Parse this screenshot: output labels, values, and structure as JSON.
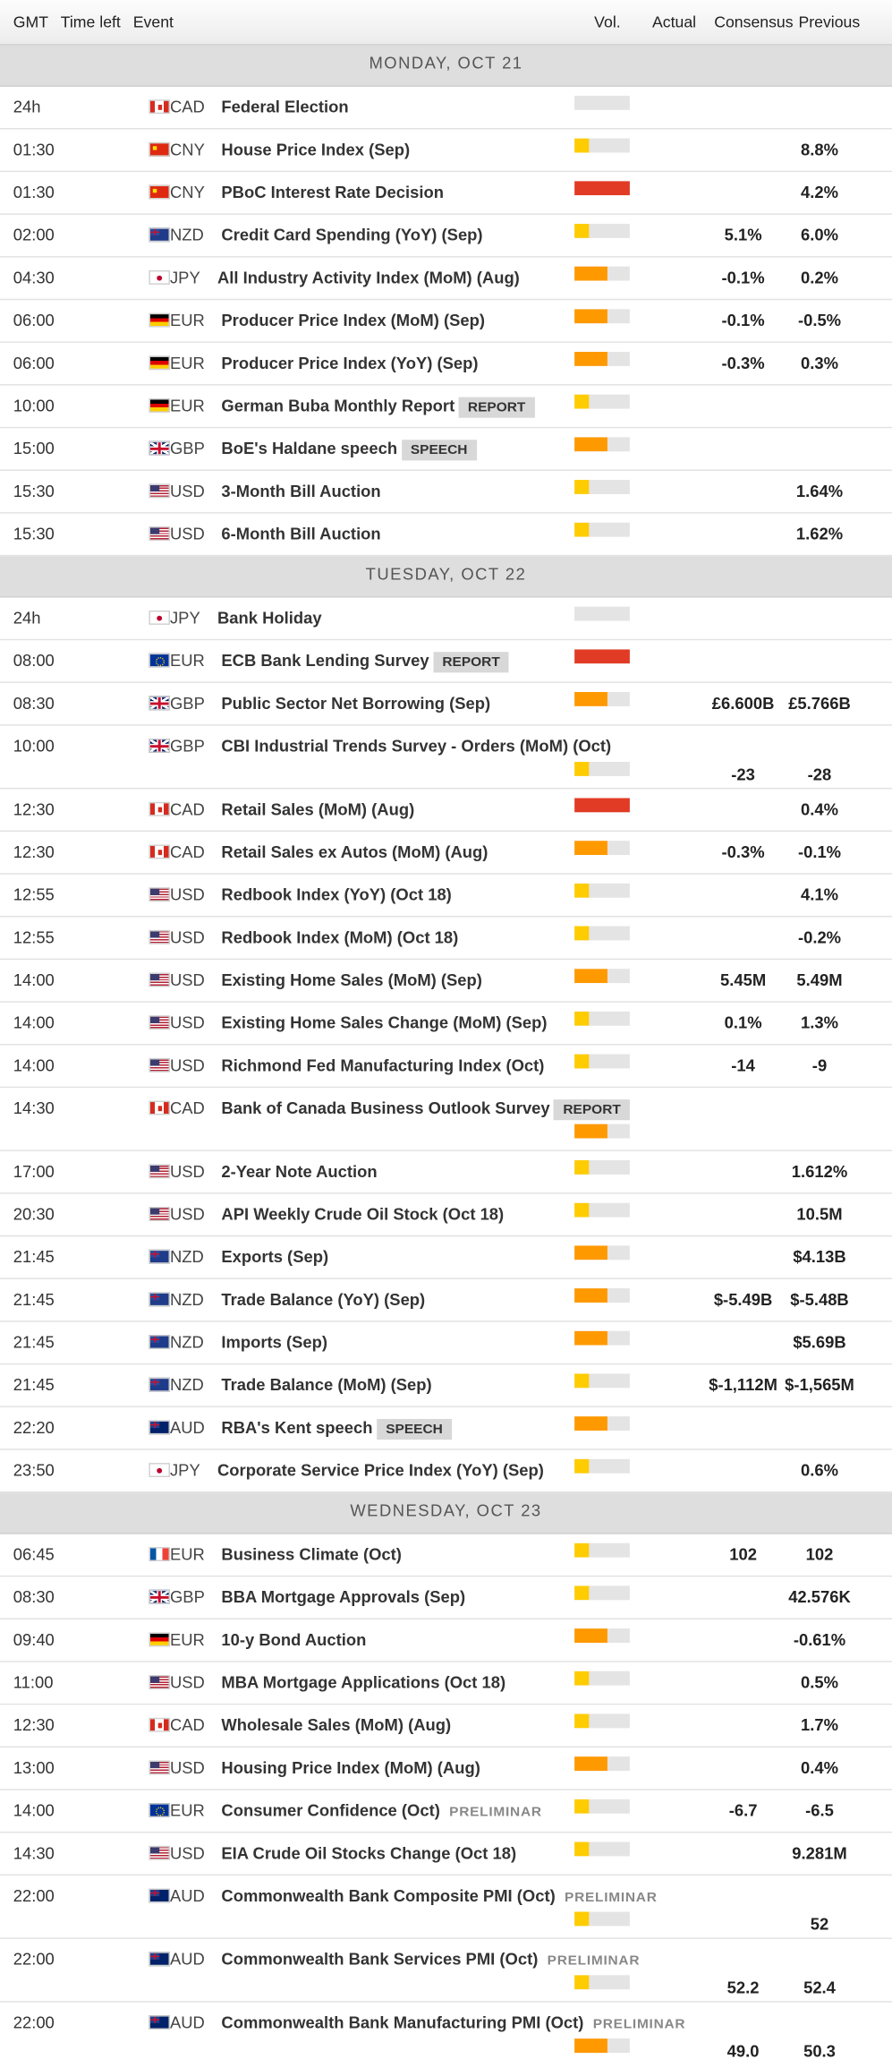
{
  "header": {
    "gmt": "GMT",
    "time_left": "Time left",
    "event": "Event",
    "vol": "Vol.",
    "actual": "Actual",
    "consensus": "Consensus",
    "previous": "Previous"
  },
  "colors": {
    "none": "#e4e4e4",
    "low": "#ffcc00",
    "medium": "#ff9900",
    "high": "#e23b25"
  },
  "days": [
    {
      "label": "MONDAY, OCT 21",
      "events": [
        {
          "time": "24h",
          "flag": "ca",
          "currency": "CAD",
          "name": "Federal Election",
          "vol": 0
        },
        {
          "time": "01:30",
          "flag": "cn",
          "currency": "CNY",
          "name": "House Price Index (Sep)",
          "vol": 1,
          "previous": "8.8%"
        },
        {
          "time": "01:30",
          "flag": "cn",
          "currency": "CNY",
          "name": "PBoC Interest Rate Decision",
          "vol": 3,
          "previous": "4.2%"
        },
        {
          "time": "02:00",
          "flag": "nz",
          "currency": "NZD",
          "name": "Credit Card Spending (YoY) (Sep)",
          "vol": 1,
          "consensus": "5.1%",
          "previous": "6.0%"
        },
        {
          "time": "04:30",
          "flag": "jp",
          "currency": "JPY",
          "name": "All Industry Activity Index (MoM) (Aug)",
          "vol": 2,
          "consensus": "-0.1%",
          "previous": "0.2%"
        },
        {
          "time": "06:00",
          "flag": "de",
          "currency": "EUR",
          "name": "Producer Price Index (MoM) (Sep)",
          "vol": 2,
          "consensus": "-0.1%",
          "previous": "-0.5%"
        },
        {
          "time": "06:00",
          "flag": "de",
          "currency": "EUR",
          "name": "Producer Price Index (YoY) (Sep)",
          "vol": 2,
          "consensus": "-0.3%",
          "previous": "0.3%"
        },
        {
          "time": "10:00",
          "flag": "de",
          "currency": "EUR",
          "name": "German Buba Monthly Report",
          "badge": "REPORT",
          "vol": 1
        },
        {
          "time": "15:00",
          "flag": "gb",
          "currency": "GBP",
          "name": "BoE's Haldane speech",
          "badge": "SPEECH",
          "vol": 2
        },
        {
          "time": "15:30",
          "flag": "us",
          "currency": "USD",
          "name": "3-Month Bill Auction",
          "vol": 1,
          "previous": "1.64%"
        },
        {
          "time": "15:30",
          "flag": "us",
          "currency": "USD",
          "name": "6-Month Bill Auction",
          "vol": 1,
          "previous": "1.62%"
        }
      ]
    },
    {
      "label": "TUESDAY, OCT 22",
      "events": [
        {
          "time": "24h",
          "flag": "jp",
          "currency": "JPY",
          "name": "Bank Holiday",
          "vol": 0
        },
        {
          "time": "08:00",
          "flag": "eu",
          "currency": "EUR",
          "name": "ECB Bank Lending Survey",
          "badge": "REPORT",
          "vol": 3
        },
        {
          "time": "08:30",
          "flag": "gb",
          "currency": "GBP",
          "name": "Public Sector Net Borrowing (Sep)",
          "vol": 2,
          "consensus": "£6.600B",
          "previous": "£5.766B"
        },
        {
          "time": "10:00",
          "flag": "gb",
          "currency": "GBP",
          "name": "CBI Industrial Trends Survey - Orders (MoM) (Oct)",
          "vol": 1,
          "consensus": "-23",
          "previous": "-28",
          "tall": true
        },
        {
          "time": "12:30",
          "flag": "ca",
          "currency": "CAD",
          "name": "Retail Sales (MoM) (Aug)",
          "vol": 3,
          "previous": "0.4%"
        },
        {
          "time": "12:30",
          "flag": "ca",
          "currency": "CAD",
          "name": "Retail Sales ex Autos (MoM) (Aug)",
          "vol": 2,
          "consensus": "-0.3%",
          "previous": "-0.1%"
        },
        {
          "time": "12:55",
          "flag": "us",
          "currency": "USD",
          "name": "Redbook Index (YoY) (Oct 18)",
          "vol": 1,
          "previous": "4.1%"
        },
        {
          "time": "12:55",
          "flag": "us",
          "currency": "USD",
          "name": "Redbook Index (MoM) (Oct 18)",
          "vol": 1,
          "previous": "-0.2%"
        },
        {
          "time": "14:00",
          "flag": "us",
          "currency": "USD",
          "name": "Existing Home Sales (MoM) (Sep)",
          "vol": 2,
          "consensus": "5.45M",
          "previous": "5.49M"
        },
        {
          "time": "14:00",
          "flag": "us",
          "currency": "USD",
          "name": "Existing Home Sales Change (MoM) (Sep)",
          "vol": 1,
          "consensus": "0.1%",
          "previous": "1.3%"
        },
        {
          "time": "14:00",
          "flag": "us",
          "currency": "USD",
          "name": "Richmond Fed Manufacturing Index (Oct)",
          "vol": 1,
          "consensus": "-14",
          "previous": "-9"
        },
        {
          "time": "14:30",
          "flag": "ca",
          "currency": "CAD",
          "name": "Bank of Canada Business Outlook Survey",
          "badge": "REPORT",
          "vol": 2,
          "tall": true
        },
        {
          "time": "17:00",
          "flag": "us",
          "currency": "USD",
          "name": "2-Year Note Auction",
          "vol": 1,
          "previous": "1.612%"
        },
        {
          "time": "20:30",
          "flag": "us",
          "currency": "USD",
          "name": "API Weekly Crude Oil Stock (Oct 18)",
          "vol": 1,
          "previous": "10.5M"
        },
        {
          "time": "21:45",
          "flag": "nz",
          "currency": "NZD",
          "name": "Exports (Sep)",
          "vol": 2,
          "previous": "$4.13B"
        },
        {
          "time": "21:45",
          "flag": "nz",
          "currency": "NZD",
          "name": "Trade Balance (YoY) (Sep)",
          "vol": 2,
          "consensus": "$-5.49B",
          "previous": "$-5.48B"
        },
        {
          "time": "21:45",
          "flag": "nz",
          "currency": "NZD",
          "name": "Imports (Sep)",
          "vol": 2,
          "previous": "$5.69B"
        },
        {
          "time": "21:45",
          "flag": "nz",
          "currency": "NZD",
          "name": "Trade Balance (MoM) (Sep)",
          "vol": 1,
          "consensus": "$-1,112M",
          "previous": "$-1,565M"
        },
        {
          "time": "22:20",
          "flag": "au",
          "currency": "AUD",
          "name": "RBA's Kent speech",
          "badge": "SPEECH",
          "vol": 2
        },
        {
          "time": "23:50",
          "flag": "jp",
          "currency": "JPY",
          "name": "Corporate Service Price Index (YoY) (Sep)",
          "vol": 1,
          "previous": "0.6%"
        }
      ]
    },
    {
      "label": "WEDNESDAY, OCT 23",
      "events": [
        {
          "time": "06:45",
          "flag": "fr",
          "currency": "EUR",
          "name": "Business Climate (Oct)",
          "vol": 1,
          "consensus": "102",
          "previous": "102"
        },
        {
          "time": "08:30",
          "flag": "gb",
          "currency": "GBP",
          "name": "BBA Mortgage Approvals (Sep)",
          "vol": 1,
          "previous": "42.576K"
        },
        {
          "time": "09:40",
          "flag": "de",
          "currency": "EUR",
          "name": "10-y Bond Auction",
          "vol": 2,
          "previous": "-0.61%"
        },
        {
          "time": "11:00",
          "flag": "us",
          "currency": "USD",
          "name": "MBA Mortgage Applications (Oct 18)",
          "vol": 1,
          "previous": "0.5%"
        },
        {
          "time": "12:30",
          "flag": "ca",
          "currency": "CAD",
          "name": "Wholesale Sales (MoM) (Aug)",
          "vol": 1,
          "previous": "1.7%"
        },
        {
          "time": "13:00",
          "flag": "us",
          "currency": "USD",
          "name": "Housing Price Index (MoM) (Aug)",
          "vol": 2,
          "previous": "0.4%"
        },
        {
          "time": "14:00",
          "flag": "eu",
          "currency": "EUR",
          "name": "Consumer Confidence (Oct)",
          "prelim": "PRELIMINAR",
          "vol": 1,
          "consensus": "-6.7",
          "previous": "-6.5"
        },
        {
          "time": "14:30",
          "flag": "us",
          "currency": "USD",
          "name": "EIA Crude Oil Stocks Change (Oct 18)",
          "vol": 1,
          "previous": "9.281M"
        },
        {
          "time": "22:00",
          "flag": "au",
          "currency": "AUD",
          "name": "Commonwealth Bank Composite PMI (Oct)",
          "prelim": "PRELIMINAR",
          "vol": 1,
          "previous": "52",
          "tall": true
        },
        {
          "time": "22:00",
          "flag": "au",
          "currency": "AUD",
          "name": "Commonwealth Bank Services PMI (Oct)",
          "prelim": "PRELIMINAR",
          "vol": 1,
          "consensus": "52.2",
          "previous": "52.4",
          "tall": true
        },
        {
          "time": "22:00",
          "flag": "au",
          "currency": "AUD",
          "name": "Commonwealth Bank Manufacturing PMI (Oct)",
          "prelim": "PRELIMINAR",
          "vol": 2,
          "consensus": "49.0",
          "previous": "50.3",
          "tall": true
        }
      ]
    }
  ]
}
